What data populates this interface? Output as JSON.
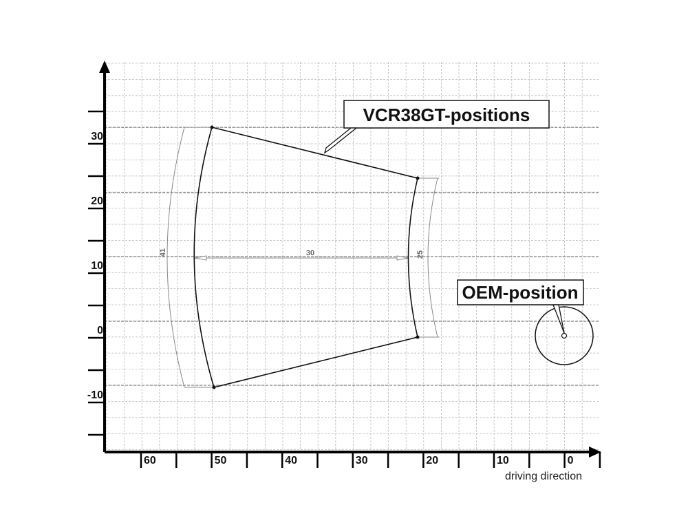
{
  "axes": {
    "x_labels": [
      "60",
      "50",
      "40",
      "30",
      "20",
      "10",
      "0"
    ],
    "y_labels": [
      "30",
      "20",
      "10",
      "0",
      "-10"
    ],
    "x_title": "driving direction"
  },
  "dimensions": {
    "left_arc": "41",
    "width": "30",
    "right_arc": "25"
  },
  "callouts": {
    "vcr": "VCR38GT-positions",
    "oem": "OEM-position"
  }
}
